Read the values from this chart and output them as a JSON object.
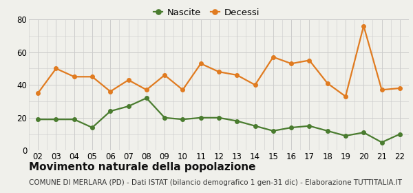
{
  "years": [
    "02",
    "03",
    "04",
    "05",
    "06",
    "07",
    "08",
    "09",
    "10",
    "11",
    "12",
    "13",
    "14",
    "15",
    "16",
    "17",
    "18",
    "19",
    "20",
    "21",
    "22"
  ],
  "nascite": [
    19,
    19,
    19,
    14,
    24,
    27,
    32,
    20,
    19,
    20,
    20,
    18,
    15,
    12,
    14,
    15,
    12,
    9,
    11,
    5,
    10
  ],
  "decessi": [
    35,
    50,
    45,
    45,
    36,
    43,
    37,
    46,
    37,
    53,
    48,
    46,
    40,
    57,
    53,
    55,
    41,
    33,
    76,
    37,
    38
  ],
  "nascite_color": "#4a7c2f",
  "decessi_color": "#e07b20",
  "bg_color": "#f0f0eb",
  "grid_color": "#cccccc",
  "ylim": [
    0,
    80
  ],
  "yticks": [
    0,
    20,
    40,
    60,
    80
  ],
  "title": "Movimento naturale della popolazione",
  "subtitle": "COMUNE DI MERLARA (PD) - Dati ISTAT (bilancio demografico 1 gen-31 dic) - Elaborazione TUTTITALIA.IT",
  "legend_nascite": "Nascite",
  "legend_decessi": "Decessi",
  "title_fontsize": 11,
  "subtitle_fontsize": 7.5,
  "tick_fontsize": 8.5,
  "legend_fontsize": 9.5,
  "marker_size": 4,
  "line_width": 1.6
}
